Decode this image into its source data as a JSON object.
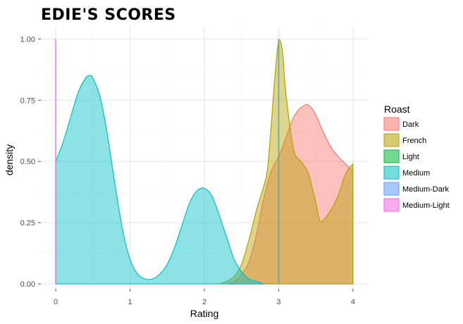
{
  "chart_data": {
    "type": "area",
    "title": "EDIE'S SCORES",
    "xlabel": "Rating",
    "ylabel": "density",
    "xlim": [
      -0.2,
      4.2
    ],
    "ylim": [
      -0.02,
      1.05
    ],
    "x_ticks": [
      "0",
      "1",
      "2",
      "3",
      "4"
    ],
    "y_ticks": [
      "0.00",
      "0.25",
      "0.50",
      "0.75",
      "1.00"
    ],
    "grid": true,
    "legend": {
      "title": "Roast",
      "position": "right"
    },
    "series": [
      {
        "name": "Dark",
        "color": "#F8766D",
        "points": [
          [
            2.3,
            0
          ],
          [
            2.4,
            0.01
          ],
          [
            2.5,
            0.04
          ],
          [
            2.6,
            0.09
          ],
          [
            2.7,
            0.2
          ],
          [
            2.8,
            0.35
          ],
          [
            2.9,
            0.46
          ],
          [
            3.0,
            0.52
          ],
          [
            3.1,
            0.6
          ],
          [
            3.2,
            0.68
          ],
          [
            3.3,
            0.72
          ],
          [
            3.4,
            0.73
          ],
          [
            3.5,
            0.69
          ],
          [
            3.6,
            0.62
          ],
          [
            3.7,
            0.56
          ],
          [
            3.8,
            0.52
          ],
          [
            3.9,
            0.49
          ],
          [
            4.0,
            0.46
          ]
        ]
      },
      {
        "name": "French",
        "color": "#B79F00",
        "points": [
          [
            2.2,
            0
          ],
          [
            2.3,
            0.01
          ],
          [
            2.4,
            0.03
          ],
          [
            2.5,
            0.08
          ],
          [
            2.6,
            0.18
          ],
          [
            2.7,
            0.3
          ],
          [
            2.8,
            0.4
          ],
          [
            2.85,
            0.47
          ],
          [
            2.9,
            0.65
          ],
          [
            2.95,
            0.85
          ],
          [
            3.0,
            0.99
          ],
          [
            3.05,
            0.95
          ],
          [
            3.1,
            0.77
          ],
          [
            3.2,
            0.55
          ],
          [
            3.3,
            0.5
          ],
          [
            3.4,
            0.45
          ],
          [
            3.5,
            0.33
          ],
          [
            3.55,
            0.26
          ],
          [
            3.6,
            0.26
          ],
          [
            3.7,
            0.3
          ],
          [
            3.8,
            0.36
          ],
          [
            3.9,
            0.45
          ],
          [
            4.0,
            0.49
          ]
        ]
      },
      {
        "name": "Light",
        "color": "#00BA38",
        "points": [
          [
            3.0,
            0
          ],
          [
            3.0,
            1.0
          ]
        ]
      },
      {
        "name": "Medium",
        "color": "#00BFC4",
        "points": [
          [
            0,
            0.5
          ],
          [
            0.1,
            0.58
          ],
          [
            0.2,
            0.68
          ],
          [
            0.3,
            0.78
          ],
          [
            0.4,
            0.84
          ],
          [
            0.45,
            0.85
          ],
          [
            0.5,
            0.84
          ],
          [
            0.6,
            0.76
          ],
          [
            0.7,
            0.6
          ],
          [
            0.8,
            0.4
          ],
          [
            0.9,
            0.22
          ],
          [
            1.0,
            0.1
          ],
          [
            1.1,
            0.04
          ],
          [
            1.2,
            0.02
          ],
          [
            1.3,
            0.02
          ],
          [
            1.4,
            0.04
          ],
          [
            1.5,
            0.08
          ],
          [
            1.6,
            0.15
          ],
          [
            1.7,
            0.24
          ],
          [
            1.8,
            0.33
          ],
          [
            1.9,
            0.38
          ],
          [
            2.0,
            0.39
          ],
          [
            2.1,
            0.36
          ],
          [
            2.2,
            0.28
          ],
          [
            2.3,
            0.19
          ],
          [
            2.4,
            0.1
          ],
          [
            2.5,
            0.05
          ],
          [
            2.6,
            0.02
          ],
          [
            2.7,
            0.01
          ],
          [
            2.8,
            0.0
          ]
        ]
      },
      {
        "name": "Medium-Dark",
        "color": "#619CFF",
        "points": [
          [
            3.0,
            0
          ],
          [
            3.0,
            1.0
          ]
        ]
      },
      {
        "name": "Medium-Light",
        "color": "#F564E3",
        "points": [
          [
            0,
            0
          ],
          [
            0,
            1.0
          ]
        ]
      }
    ]
  }
}
